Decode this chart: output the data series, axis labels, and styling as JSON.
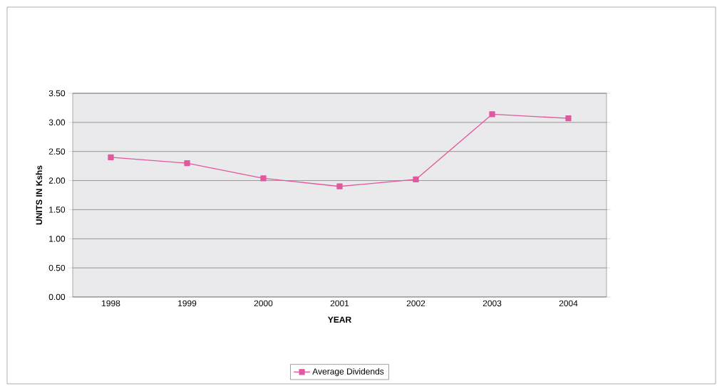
{
  "chart_data": {
    "type": "line",
    "xlabel": "YEAR",
    "ylabel": "UNITS IN Kshs",
    "categories": [
      "1998",
      "1999",
      "2000",
      "2001",
      "2002",
      "2003",
      "2004"
    ],
    "series": [
      {
        "name": "Average Dividends",
        "color": "#e0589e",
        "values": [
          2.4,
          2.3,
          2.04,
          1.9,
          2.02,
          3.14,
          3.07
        ]
      }
    ],
    "ylim": [
      0,
      3.5
    ],
    "yticks": [
      {
        "value": 0,
        "label": "0.00"
      },
      {
        "value": 0.5,
        "label": "0.50"
      },
      {
        "value": 1,
        "label": "1.00"
      },
      {
        "value": 1.5,
        "label": "1.50"
      },
      {
        "value": 2,
        "label": "2.00"
      },
      {
        "value": 2.5,
        "label": "2.50"
      },
      {
        "value": 3,
        "label": "3.00"
      },
      {
        "value": 3.5,
        "label": "3.50"
      }
    ],
    "grid": "y",
    "legend": "bottom",
    "marker": "square",
    "line_style": "solid"
  }
}
